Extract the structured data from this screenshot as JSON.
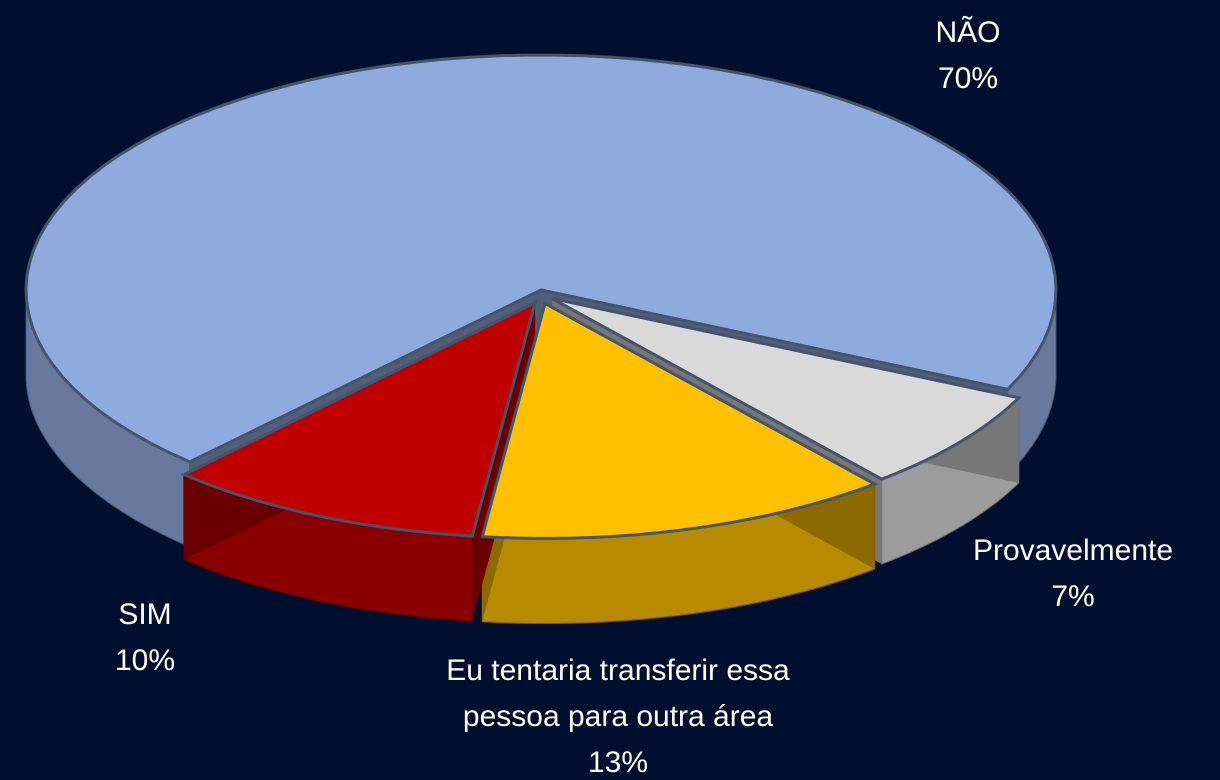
{
  "chart_data": {
    "type": "pie",
    "categories": [
      "NÃO",
      "Provavelmente",
      "Eu tentaria transferir essa pessoa para outra área",
      "SIM"
    ],
    "values": [
      70,
      7,
      13,
      10
    ],
    "value_labels": [
      "70%",
      "7%",
      "13%",
      "10%"
    ],
    "colors": [
      "#8faadc",
      "#d9d9d9",
      "#ffc000",
      "#c00000"
    ]
  }
}
